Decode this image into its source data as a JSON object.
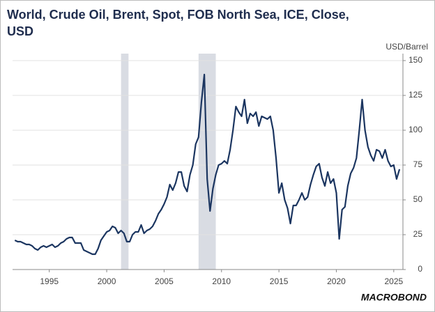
{
  "chart_data": {
    "type": "line",
    "title": "World, Crude Oil, Brent, Spot, FOB North Sea, ICE, Close,",
    "title_line2": "USD",
    "y_unit": "USD/Barrel",
    "logo": "MACROBOND",
    "x": [
      1992,
      1992.25,
      1992.5,
      1992.75,
      1993,
      1993.25,
      1993.5,
      1993.75,
      1994,
      1994.25,
      1994.5,
      1994.75,
      1995,
      1995.25,
      1995.5,
      1995.75,
      1996,
      1996.25,
      1996.5,
      1996.75,
      1997,
      1997.25,
      1997.5,
      1997.75,
      1998,
      1998.25,
      1998.5,
      1998.75,
      1999,
      1999.25,
      1999.5,
      1999.75,
      2000,
      2000.25,
      2000.5,
      2000.75,
      2001,
      2001.25,
      2001.5,
      2001.75,
      2002,
      2002.25,
      2002.5,
      2002.75,
      2003,
      2003.25,
      2003.5,
      2003.75,
      2004,
      2004.25,
      2004.5,
      2004.75,
      2005,
      2005.25,
      2005.5,
      2005.75,
      2006,
      2006.25,
      2006.5,
      2006.75,
      2007,
      2007.25,
      2007.5,
      2007.75,
      2008,
      2008.25,
      2008.5,
      2008.75,
      2009,
      2009.25,
      2009.5,
      2009.75,
      2010,
      2010.25,
      2010.5,
      2010.75,
      2011,
      2011.25,
      2011.5,
      2011.75,
      2012,
      2012.25,
      2012.5,
      2012.75,
      2013,
      2013.25,
      2013.5,
      2013.75,
      2014,
      2014.25,
      2014.5,
      2014.75,
      2015,
      2015.25,
      2015.5,
      2015.75,
      2016,
      2016.25,
      2016.5,
      2016.75,
      2017,
      2017.25,
      2017.5,
      2017.75,
      2018,
      2018.25,
      2018.5,
      2018.75,
      2019,
      2019.25,
      2019.5,
      2019.75,
      2020,
      2020.25,
      2020.5,
      2020.75,
      2021,
      2021.25,
      2021.5,
      2021.75,
      2022,
      2022.25,
      2022.5,
      2022.75,
      2023,
      2023.25,
      2023.5,
      2023.75,
      2024,
      2024.25,
      2024.5,
      2024.75,
      2025,
      2025.25,
      2025.5
    ],
    "series": [
      {
        "color": "#1b3560",
        "values": [
          21,
          20,
          20,
          19,
          18,
          18,
          17,
          15,
          14,
          16,
          17,
          16,
          17,
          18,
          16,
          17,
          19,
          20,
          22,
          23,
          23,
          19,
          19,
          19,
          14,
          13,
          12,
          11,
          11,
          15,
          21,
          24,
          27,
          28,
          31,
          30,
          26,
          28,
          26,
          20,
          20,
          25,
          27,
          27,
          32,
          26,
          28,
          29,
          31,
          35,
          40,
          43,
          47,
          52,
          61,
          57,
          62,
          70,
          70,
          60,
          56,
          68,
          75,
          90,
          95,
          120,
          140,
          65,
          42,
          58,
          68,
          75,
          76,
          78,
          76,
          86,
          100,
          117,
          113,
          110,
          122,
          105,
          112,
          110,
          113,
          103,
          110,
          109,
          108,
          110,
          100,
          80,
          55,
          62,
          50,
          44,
          33,
          46,
          46,
          50,
          55,
          50,
          52,
          61,
          68,
          74,
          76,
          66,
          60,
          70,
          62,
          65,
          55,
          22,
          43,
          45,
          60,
          69,
          73,
          80,
          100,
          122,
          100,
          88,
          82,
          78,
          86,
          85,
          80,
          86,
          78,
          74,
          75,
          65,
          72
        ]
      }
    ],
    "shaded_periods": [
      [
        2001.25,
        2001.9
      ],
      [
        2008.0,
        2009.5
      ]
    ],
    "shade_color": "#d9dce3",
    "xlim": [
      1991.8,
      2025.8
    ],
    "xticks": [
      1995,
      2000,
      2005,
      2010,
      2015,
      2020,
      2025
    ],
    "ylim": [
      0,
      150
    ],
    "yticks": [
      0,
      25,
      50,
      75,
      100,
      125,
      150
    ],
    "grid": true
  }
}
